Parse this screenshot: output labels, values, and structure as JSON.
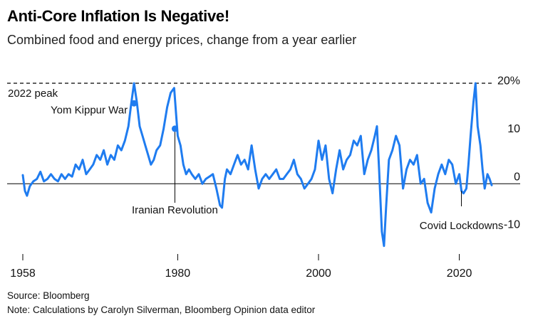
{
  "header": {
    "title": "Anti-Core Inflation Is Negative!",
    "subtitle": "Combined food and energy prices, change from a year earlier"
  },
  "footer": {
    "source": "Source: Bloomberg",
    "note": "Note: Calculations by Carolyn Silverman, Bloomberg Opinion data editor"
  },
  "colors": {
    "line": "#1f7cf0",
    "axis": "#000000"
  },
  "chart_data": {
    "type": "line",
    "title": "Anti-Core Inflation Is Negative!",
    "subtitle": "Combined food and energy prices, change from a year earlier",
    "xlim": [
      1958,
      2025
    ],
    "ylim": [
      -12.6,
      21
    ],
    "x_ticks": [
      {
        "value": 1958,
        "label": "1958"
      },
      {
        "value": 1980,
        "label": "1980"
      },
      {
        "value": 2000,
        "label": "2000"
      },
      {
        "value": 2020,
        "label": "2020"
      }
    ],
    "y_ticks": [
      {
        "value": 20,
        "label": "20%"
      },
      {
        "value": 10,
        "label": "10"
      },
      {
        "value": 0,
        "label": "0"
      },
      {
        "value": -10,
        "label": "-10"
      }
    ],
    "reference_line": {
      "value": 21,
      "label": "2022 peak",
      "style": "dashed"
    },
    "annotations": [
      {
        "label": "Yom Kippur War",
        "x": 1973.8,
        "y": 16.8,
        "marker": "dot"
      },
      {
        "label": "Iranian Revolution",
        "x": 1979.6,
        "y": 11.5,
        "marker": "dot"
      },
      {
        "label": "Covid Lockdowns",
        "x": 2020.3,
        "y": -1.5,
        "marker": "line"
      }
    ],
    "series": [
      {
        "x": [
          1958,
          1958.3,
          1958.6,
          1959,
          1959.5,
          1960,
          1960.5,
          1961,
          1961.5,
          1962,
          1962.5,
          1963,
          1963.5,
          1964,
          1964.5,
          1965,
          1965.5,
          1966,
          1966.5,
          1967,
          1967.5,
          1968,
          1968.5,
          1969,
          1969.5,
          1970,
          1970.5,
          1971,
          1971.5,
          1972,
          1972.5,
          1973,
          1973.4,
          1973.8,
          1974.2,
          1974.6,
          1975,
          1975.4,
          1975.8,
          1976.2,
          1976.6,
          1977,
          1977.5,
          1978,
          1978.5,
          1979,
          1979.5,
          1980,
          1980.4,
          1980.8,
          1981.2,
          1981.6,
          1982,
          1982.5,
          1983,
          1983.5,
          1984,
          1984.5,
          1985,
          1985.5,
          1986,
          1986.3,
          1986.7,
          1987,
          1987.5,
          1988,
          1988.5,
          1989,
          1989.5,
          1990,
          1990.5,
          1991,
          1991.5,
          1992,
          1992.5,
          1993,
          1993.5,
          1994,
          1994.5,
          1995,
          1995.5,
          1996,
          1996.5,
          1997,
          1997.5,
          1998,
          1998.5,
          1999,
          1999.5,
          2000,
          2000.5,
          2001,
          2001.5,
          2002,
          2002.5,
          2003,
          2003.5,
          2004,
          2004.5,
          2005,
          2005.5,
          2006,
          2006.5,
          2007,
          2007.5,
          2008,
          2008.3,
          2008.6,
          2009,
          2009.3,
          2009.6,
          2010,
          2010.5,
          2011,
          2011.5,
          2012,
          2012.5,
          2013,
          2013.5,
          2014,
          2014.5,
          2015,
          2015.5,
          2016,
          2016.5,
          2017,
          2017.5,
          2018,
          2018.5,
          2019,
          2019.5,
          2020,
          2020.3,
          2020.6,
          2021,
          2021.3,
          2021.6,
          2022,
          2022.3,
          2022.6,
          2023,
          2023.3,
          2023.6,
          2024,
          2024.3,
          2024.6
        ],
        "values": [
          1.8,
          -1.5,
          -2.5,
          -0.5,
          0.5,
          1,
          2.5,
          0.5,
          1,
          2,
          1,
          0.5,
          2,
          1,
          2,
          1.5,
          4,
          3,
          5,
          2,
          3,
          4,
          6,
          5,
          7,
          4,
          6,
          5,
          8,
          7,
          9,
          12,
          16.8,
          21,
          17,
          12,
          10,
          8,
          6,
          4,
          5,
          7,
          8,
          11.5,
          16,
          19,
          20,
          10,
          8,
          4,
          2,
          3,
          2,
          1,
          2,
          0,
          1,
          1.5,
          2,
          -1,
          -4.5,
          -5,
          1,
          3,
          2,
          4,
          6,
          4,
          5,
          3,
          8,
          3,
          -1,
          1,
          2,
          1,
          2,
          3,
          1,
          1,
          2,
          3,
          5,
          2,
          1,
          -1,
          0,
          1,
          3,
          9,
          5,
          8,
          1,
          -2,
          3,
          7,
          3,
          5,
          6,
          9,
          8,
          10,
          2,
          5,
          7,
          10,
          12,
          3,
          -10,
          -13,
          -5,
          5,
          7,
          10,
          8,
          -1,
          3,
          5,
          4,
          6,
          0,
          1,
          -4,
          -6,
          -1,
          2,
          4,
          2,
          5,
          4,
          0,
          2,
          -1.5,
          -2,
          -1,
          4,
          10,
          17,
          21,
          12,
          8,
          3,
          -1,
          2,
          1,
          -0.3
        ]
      }
    ]
  }
}
